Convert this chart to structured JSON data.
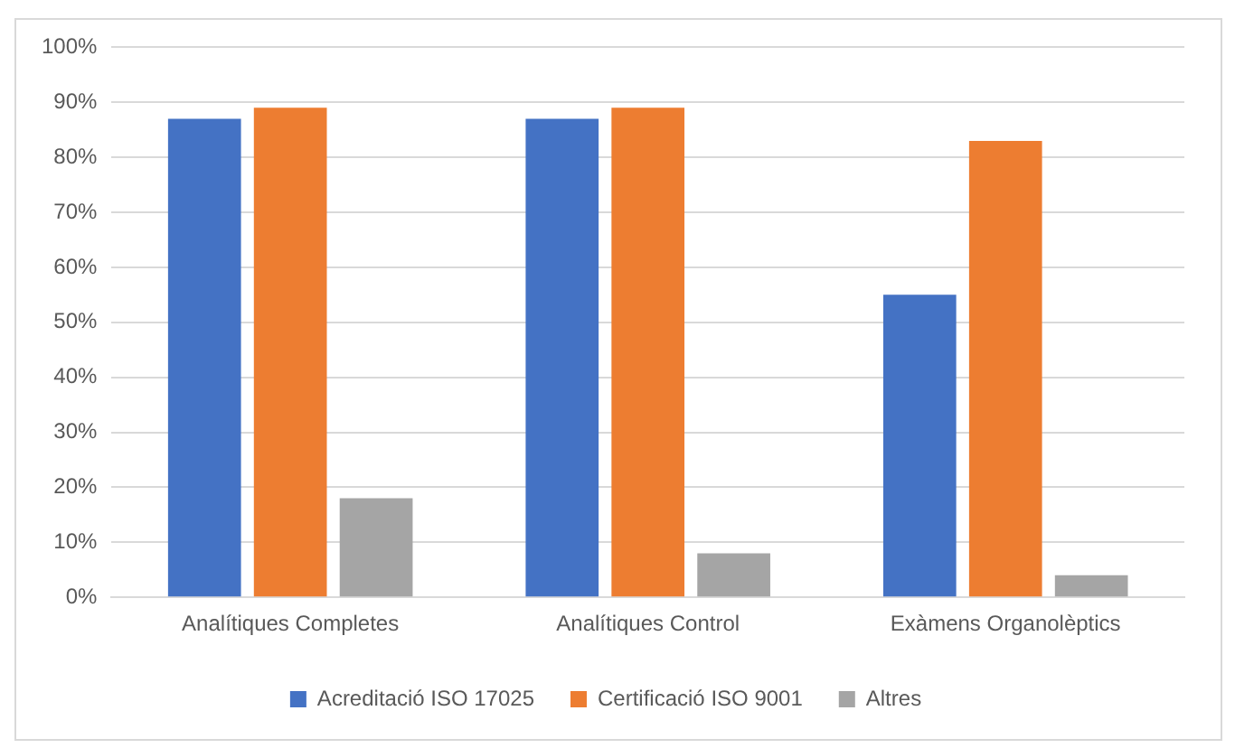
{
  "chart_data": {
    "type": "bar",
    "categories": [
      "Analítiques Completes",
      "Analítiques Control",
      "Exàmens Organolèptics"
    ],
    "series": [
      {
        "name": "Acreditació ISO 17025",
        "color": "#4472c4",
        "values": [
          87,
          87,
          55
        ]
      },
      {
        "name": "Certificació ISO 9001",
        "color": "#ed7d31",
        "values": [
          89,
          89,
          83
        ]
      },
      {
        "name": "Altres",
        "color": "#a5a5a5",
        "values": [
          18,
          8,
          4
        ]
      }
    ],
    "ylim": [
      0,
      100
    ],
    "yticks": [
      {
        "value": 0,
        "label": "0%"
      },
      {
        "value": 10,
        "label": "10%"
      },
      {
        "value": 20,
        "label": "20%"
      },
      {
        "value": 30,
        "label": "30%"
      },
      {
        "value": 40,
        "label": "40%"
      },
      {
        "value": 50,
        "label": "50%"
      },
      {
        "value": 60,
        "label": "60%"
      },
      {
        "value": 70,
        "label": "70%"
      },
      {
        "value": 80,
        "label": "80%"
      },
      {
        "value": 90,
        "label": "90%"
      },
      {
        "value": 100,
        "label": "100%"
      }
    ],
    "grid": "y",
    "legend": "bottom"
  }
}
